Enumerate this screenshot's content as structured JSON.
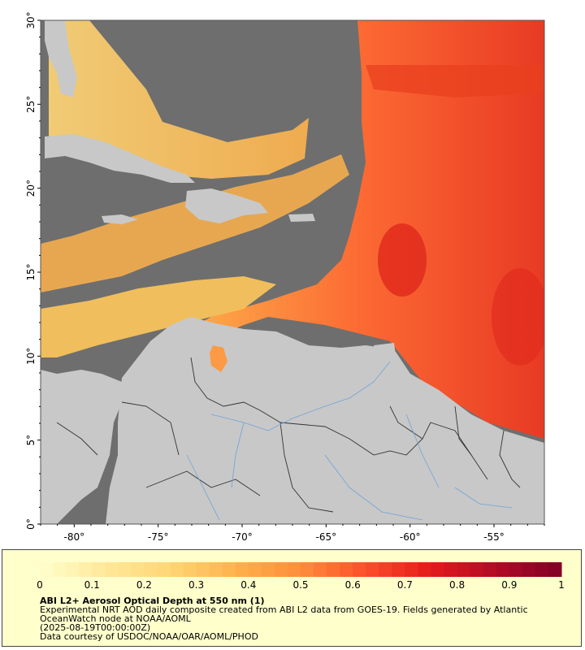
{
  "map": {
    "lat_ticks": [
      "0°",
      "5°",
      "10°",
      "15°",
      "20°",
      "25°",
      "30°"
    ],
    "lon_ticks": [
      "-80°",
      "-75°",
      "-70°",
      "-65°",
      "-60°",
      "-55°"
    ],
    "lat_values": [
      0,
      5,
      10,
      15,
      20,
      25,
      30
    ],
    "lon_values": [
      -80,
      -75,
      -70,
      -65,
      -60,
      -55
    ],
    "extent": {
      "lon_min": -82,
      "lon_max": -52,
      "lat_min": 0,
      "lat_max": 30
    },
    "colors": {
      "no_data": "#6e6e6e",
      "land": "#c8c8c8",
      "rivers": "#6fa3d8",
      "borders": "#333333"
    }
  },
  "colorbar": {
    "ticks": [
      "0",
      "0.1",
      "0.2",
      "0.3",
      "0.4",
      "0.5",
      "0.6",
      "0.7",
      "0.8",
      "0.9",
      "1"
    ],
    "min": 0,
    "max": 1,
    "stops": [
      "#ffffcc",
      "#ffe89a",
      "#fed676",
      "#fdb24c",
      "#fd8d3c",
      "#fc4e2a",
      "#e31a1c",
      "#b20a26",
      "#800026"
    ]
  },
  "legend": {
    "title": "ABI L2+ Aerosol Optical Depth at 550 nm (1)",
    "line1": "Experimental NRT AOD daily composite created from ABI L2 data from GOES-19. Fields generated by Atlantic",
    "line2": "OceanWatch node at NOAA/AOML",
    "line3": "(2025-08-19T00:00:00Z)",
    "line4": "Data courtesy of USDOC/NOAA/OAR/AOML/PHOD"
  }
}
